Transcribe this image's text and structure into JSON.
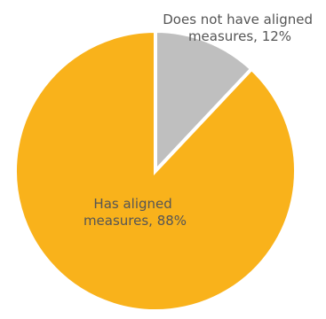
{
  "chart_data": {
    "type": "pie",
    "title": "",
    "slices": [
      {
        "label": "Does not have aligned measures",
        "value": 12,
        "display": [
          "Does not have aligned",
          "measures, 12%"
        ],
        "color": "#BFBFBF"
      },
      {
        "label": "Has aligned measures",
        "value": 88,
        "display": [
          "Has aligned",
          "measures, 88%"
        ],
        "color": "#F9B21B"
      }
    ],
    "separator_color": "#FFFFFF"
  }
}
